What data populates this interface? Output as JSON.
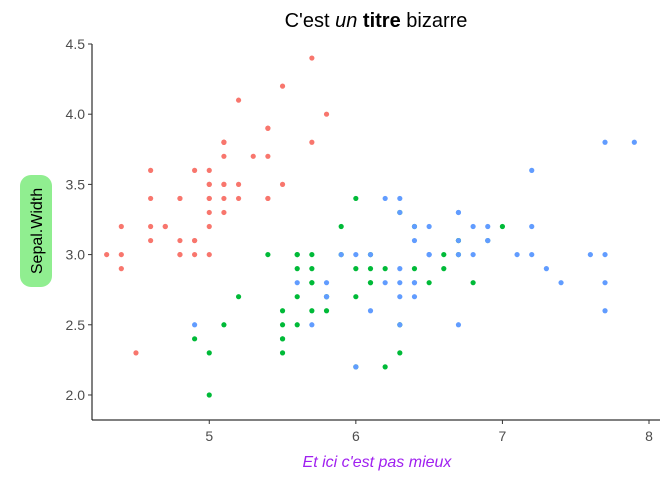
{
  "chart_data": {
    "type": "scatter",
    "title_parts": [
      {
        "text": "C'est ",
        "style": "normal"
      },
      {
        "text": "un",
        "style": "italic"
      },
      {
        "text": " ",
        "style": "normal"
      },
      {
        "text": "titre",
        "style": "bold"
      },
      {
        "text": " bizarre",
        "style": "normal"
      }
    ],
    "xlabel": "Et ici c'est pas mieux",
    "ylabel": "Sepal.Width",
    "xlabel_color": "#A020F0",
    "ylabel_background": "#90EE90",
    "xlim": [
      4.2,
      8.0
    ],
    "ylim": [
      1.95,
      4.5
    ],
    "xticks": [
      5,
      6,
      7,
      8
    ],
    "yticks": [
      2.0,
      2.5,
      3.0,
      3.5,
      4.0,
      4.5
    ],
    "ytick_labels": [
      "2.0",
      "2.5",
      "3.0",
      "3.5",
      "4.0",
      "4.5"
    ],
    "grid": false,
    "legend": "none",
    "series": [
      {
        "color": "#F8766D",
        "points": [
          [
            5.1,
            3.5
          ],
          [
            4.9,
            3.0
          ],
          [
            4.7,
            3.2
          ],
          [
            4.6,
            3.1
          ],
          [
            5.0,
            3.6
          ],
          [
            5.4,
            3.9
          ],
          [
            4.6,
            3.4
          ],
          [
            5.0,
            3.4
          ],
          [
            4.4,
            2.9
          ],
          [
            4.9,
            3.1
          ],
          [
            5.4,
            3.7
          ],
          [
            4.8,
            3.4
          ],
          [
            4.8,
            3.0
          ],
          [
            4.3,
            3.0
          ],
          [
            5.8,
            4.0
          ],
          [
            5.7,
            4.4
          ],
          [
            5.4,
            3.9
          ],
          [
            5.1,
            3.5
          ],
          [
            5.7,
            3.8
          ],
          [
            5.1,
            3.8
          ],
          [
            5.4,
            3.4
          ],
          [
            5.1,
            3.7
          ],
          [
            4.6,
            3.6
          ],
          [
            5.1,
            3.3
          ],
          [
            4.8,
            3.4
          ],
          [
            5.0,
            3.0
          ],
          [
            5.0,
            3.4
          ],
          [
            5.2,
            3.5
          ],
          [
            5.2,
            3.4
          ],
          [
            4.7,
            3.2
          ],
          [
            4.8,
            3.1
          ],
          [
            5.4,
            3.4
          ],
          [
            5.2,
            4.1
          ],
          [
            5.5,
            4.2
          ],
          [
            4.9,
            3.1
          ],
          [
            5.0,
            3.2
          ],
          [
            5.5,
            3.5
          ],
          [
            4.9,
            3.6
          ],
          [
            4.4,
            3.0
          ],
          [
            5.1,
            3.4
          ],
          [
            5.0,
            3.5
          ],
          [
            4.5,
            2.3
          ],
          [
            4.4,
            3.2
          ],
          [
            5.0,
            3.5
          ],
          [
            5.1,
            3.8
          ],
          [
            4.8,
            3.0
          ],
          [
            5.1,
            3.8
          ],
          [
            4.6,
            3.2
          ],
          [
            5.3,
            3.7
          ],
          [
            5.0,
            3.3
          ]
        ]
      },
      {
        "color": "#00BA38",
        "points": [
          [
            7.0,
            3.2
          ],
          [
            6.4,
            3.2
          ],
          [
            6.9,
            3.1
          ],
          [
            5.5,
            2.3
          ],
          [
            6.5,
            2.8
          ],
          [
            5.7,
            2.8
          ],
          [
            6.3,
            3.3
          ],
          [
            4.9,
            2.4
          ],
          [
            6.6,
            2.9
          ],
          [
            5.2,
            2.7
          ],
          [
            5.0,
            2.0
          ],
          [
            5.9,
            3.0
          ],
          [
            6.0,
            2.2
          ],
          [
            6.1,
            2.9
          ],
          [
            5.6,
            2.9
          ],
          [
            6.7,
            3.1
          ],
          [
            5.6,
            3.0
          ],
          [
            5.8,
            2.7
          ],
          [
            6.2,
            2.2
          ],
          [
            5.6,
            2.5
          ],
          [
            5.9,
            3.2
          ],
          [
            6.1,
            2.8
          ],
          [
            6.3,
            2.5
          ],
          [
            6.1,
            2.8
          ],
          [
            6.4,
            2.9
          ],
          [
            6.6,
            3.0
          ],
          [
            6.8,
            2.8
          ],
          [
            6.7,
            3.0
          ],
          [
            6.0,
            2.9
          ],
          [
            5.7,
            2.6
          ],
          [
            5.5,
            2.4
          ],
          [
            5.5,
            2.4
          ],
          [
            5.8,
            2.7
          ],
          [
            6.0,
            2.7
          ],
          [
            5.4,
            3.0
          ],
          [
            6.0,
            3.4
          ],
          [
            6.7,
            3.1
          ],
          [
            6.3,
            2.3
          ],
          [
            5.6,
            3.0
          ],
          [
            5.5,
            2.5
          ],
          [
            5.5,
            2.6
          ],
          [
            6.1,
            3.0
          ],
          [
            5.8,
            2.6
          ],
          [
            5.0,
            2.3
          ],
          [
            5.6,
            2.7
          ],
          [
            5.7,
            3.0
          ],
          [
            5.7,
            2.9
          ],
          [
            6.2,
            2.9
          ],
          [
            5.1,
            2.5
          ],
          [
            5.7,
            2.8
          ]
        ]
      },
      {
        "color": "#619CFF",
        "points": [
          [
            6.3,
            3.3
          ],
          [
            5.8,
            2.7
          ],
          [
            7.1,
            3.0
          ],
          [
            6.3,
            2.9
          ],
          [
            6.5,
            3.0
          ],
          [
            7.6,
            3.0
          ],
          [
            4.9,
            2.5
          ],
          [
            7.3,
            2.9
          ],
          [
            6.7,
            2.5
          ],
          [
            7.2,
            3.6
          ],
          [
            6.5,
            3.2
          ],
          [
            6.4,
            2.7
          ],
          [
            6.8,
            3.0
          ],
          [
            5.7,
            2.5
          ],
          [
            5.8,
            2.8
          ],
          [
            6.4,
            3.2
          ],
          [
            6.5,
            3.0
          ],
          [
            7.7,
            3.8
          ],
          [
            7.7,
            2.6
          ],
          [
            6.0,
            2.2
          ],
          [
            6.9,
            3.2
          ],
          [
            5.6,
            2.8
          ],
          [
            7.7,
            2.8
          ],
          [
            6.3,
            2.7
          ],
          [
            6.7,
            3.3
          ],
          [
            7.2,
            3.2
          ],
          [
            6.2,
            2.8
          ],
          [
            6.1,
            3.0
          ],
          [
            6.4,
            2.8
          ],
          [
            7.2,
            3.0
          ],
          [
            7.4,
            2.8
          ],
          [
            7.9,
            3.8
          ],
          [
            6.4,
            2.8
          ],
          [
            6.3,
            2.8
          ],
          [
            6.1,
            2.6
          ],
          [
            7.7,
            3.0
          ],
          [
            6.3,
            3.4
          ],
          [
            6.4,
            3.1
          ],
          [
            6.0,
            3.0
          ],
          [
            6.9,
            3.1
          ],
          [
            6.7,
            3.1
          ],
          [
            6.9,
            3.1
          ],
          [
            5.8,
            2.7
          ],
          [
            6.8,
            3.2
          ],
          [
            6.7,
            3.3
          ],
          [
            6.7,
            3.0
          ],
          [
            6.3,
            2.5
          ],
          [
            6.5,
            3.0
          ],
          [
            6.2,
            3.4
          ],
          [
            5.9,
            3.0
          ]
        ]
      }
    ]
  }
}
